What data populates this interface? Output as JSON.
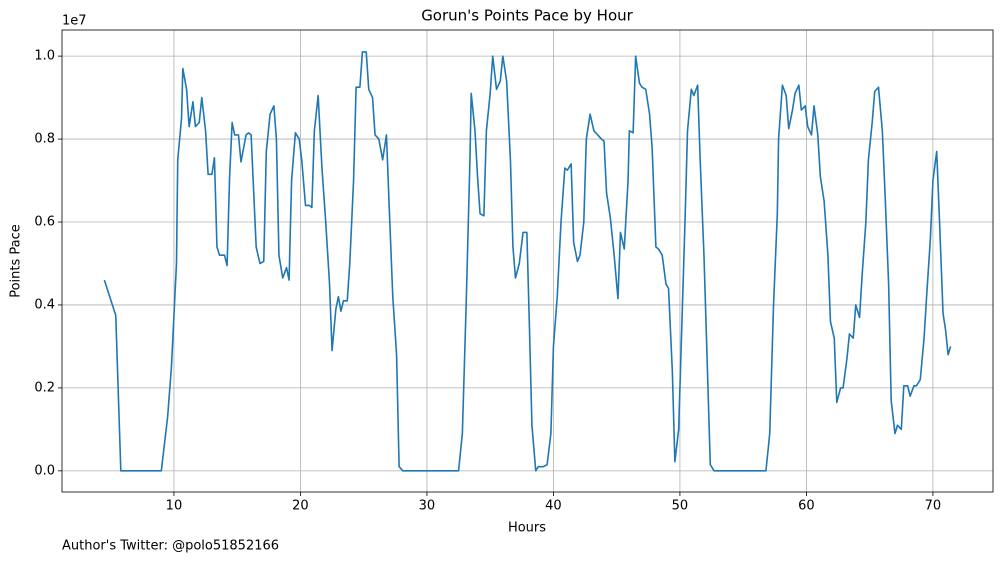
{
  "chart_data": {
    "type": "line",
    "title": "Gorun's Points Pace by Hour",
    "x_label": "Hours",
    "y_label": "Points Pace",
    "y_offset_label": "1e7",
    "footnote": "Author's Twitter: @polo51852166",
    "grid": true,
    "xlim": [
      1.15,
      74.75
    ],
    "ylim": [
      -0.051,
      1.063
    ],
    "xticks": [
      10,
      20,
      30,
      40,
      50,
      60,
      70
    ],
    "yticks": [
      {
        "value": 0,
        "label": "0.0"
      },
      0.2,
      0.4,
      0.6,
      0.8,
      {
        "value": 1,
        "label": "1.0"
      }
    ],
    "series": [
      {
        "name": "Points Pace",
        "color": "#1f77b4",
        "x": [
          4.5,
          5.4,
          5.8,
          9.0,
          9.5,
          9.8,
          10.2,
          10.3,
          10.6,
          10.7,
          11.0,
          11.2,
          11.5,
          11.7,
          12.0,
          12.2,
          12.5,
          12.7,
          13.0,
          13.2,
          13.4,
          13.6,
          14.0,
          14.2,
          14.4,
          14.6,
          14.8,
          15.1,
          15.3,
          15.7,
          15.9,
          16.1,
          16.5,
          16.8,
          17.1,
          17.3,
          17.6,
          17.9,
          18.1,
          18.3,
          18.6,
          18.9,
          19.1,
          19.3,
          19.6,
          19.9,
          20.1,
          20.4,
          20.7,
          20.9,
          21.1,
          21.4,
          21.7,
          22.0,
          22.3,
          22.5,
          22.8,
          23.0,
          23.2,
          23.4,
          23.7,
          23.9,
          24.2,
          24.4,
          24.7,
          24.9,
          25.2,
          25.4,
          25.7,
          25.9,
          26.2,
          26.5,
          26.8,
          27.0,
          27.3,
          27.6,
          27.8,
          28.1,
          32.5,
          32.8,
          33.1,
          33.4,
          33.5,
          33.8,
          34.0,
          34.2,
          34.5,
          34.7,
          35.0,
          35.2,
          35.5,
          35.8,
          36.0,
          36.3,
          36.6,
          36.8,
          37.0,
          37.3,
          37.6,
          37.9,
          38.1,
          38.3,
          38.6,
          38.8,
          39.2,
          39.5,
          39.8,
          40.0,
          40.3,
          40.6,
          40.9,
          41.1,
          41.4,
          41.6,
          41.9,
          42.1,
          42.4,
          42.6,
          42.9,
          43.2,
          43.5,
          43.8,
          44.0,
          44.2,
          44.5,
          44.8,
          45.1,
          45.3,
          45.6,
          45.9,
          46.0,
          46.3,
          46.5,
          46.8,
          47.0,
          47.3,
          47.6,
          47.8,
          48.1,
          48.3,
          48.6,
          48.9,
          49.1,
          49.4,
          49.6,
          49.9,
          50.1,
          50.4,
          50.6,
          50.9,
          51.1,
          51.4,
          51.6,
          51.9,
          52.1,
          52.4,
          52.7,
          56.8,
          57.1,
          57.4,
          57.7,
          57.8,
          58.1,
          58.4,
          58.6,
          58.9,
          59.1,
          59.4,
          59.6,
          59.9,
          60.1,
          60.4,
          60.6,
          60.9,
          61.1,
          61.4,
          61.7,
          61.9,
          62.2,
          62.4,
          62.7,
          62.9,
          63.2,
          63.4,
          63.7,
          63.9,
          64.2,
          64.4,
          64.7,
          64.9,
          65.2,
          65.4,
          65.7,
          66.0,
          66.2,
          66.5,
          66.7,
          67.0,
          67.2,
          67.5,
          67.7,
          68.0,
          68.2,
          68.5,
          68.7,
          69.0,
          69.3,
          69.5,
          69.8,
          70.0,
          70.3,
          70.5,
          70.8,
          71.0,
          71.2,
          71.4
        ],
        "values": [
          0.46,
          0.375,
          0.0,
          0.0,
          0.13,
          0.25,
          0.5,
          0.75,
          0.85,
          0.97,
          0.92,
          0.83,
          0.89,
          0.83,
          0.84,
          0.9,
          0.82,
          0.715,
          0.715,
          0.755,
          0.54,
          0.52,
          0.52,
          0.495,
          0.71,
          0.84,
          0.81,
          0.81,
          0.745,
          0.81,
          0.815,
          0.81,
          0.54,
          0.5,
          0.505,
          0.77,
          0.86,
          0.88,
          0.8,
          0.52,
          0.465,
          0.49,
          0.46,
          0.7,
          0.815,
          0.8,
          0.75,
          0.64,
          0.64,
          0.635,
          0.82,
          0.905,
          0.73,
          0.6,
          0.45,
          0.29,
          0.39,
          0.42,
          0.385,
          0.41,
          0.41,
          0.5,
          0.7,
          0.925,
          0.925,
          1.01,
          1.01,
          0.92,
          0.9,
          0.81,
          0.8,
          0.75,
          0.81,
          0.65,
          0.42,
          0.28,
          0.01,
          0.0,
          0.0,
          0.09,
          0.4,
          0.75,
          0.91,
          0.82,
          0.71,
          0.62,
          0.615,
          0.82,
          0.91,
          1.0,
          0.92,
          0.94,
          1.0,
          0.94,
          0.75,
          0.54,
          0.465,
          0.5,
          0.575,
          0.575,
          0.35,
          0.11,
          0.0,
          0.01,
          0.01,
          0.015,
          0.09,
          0.3,
          0.42,
          0.6,
          0.73,
          0.725,
          0.74,
          0.55,
          0.505,
          0.52,
          0.6,
          0.8,
          0.86,
          0.82,
          0.81,
          0.8,
          0.795,
          0.67,
          0.61,
          0.52,
          0.415,
          0.575,
          0.535,
          0.7,
          0.82,
          0.815,
          1.0,
          0.935,
          0.925,
          0.92,
          0.86,
          0.78,
          0.54,
          0.535,
          0.52,
          0.45,
          0.44,
          0.24,
          0.022,
          0.1,
          0.3,
          0.6,
          0.82,
          0.92,
          0.905,
          0.93,
          0.75,
          0.52,
          0.32,
          0.015,
          0.0,
          0.0,
          0.09,
          0.4,
          0.62,
          0.8,
          0.93,
          0.905,
          0.825,
          0.87,
          0.91,
          0.93,
          0.87,
          0.88,
          0.83,
          0.81,
          0.88,
          0.81,
          0.71,
          0.65,
          0.52,
          0.36,
          0.32,
          0.165,
          0.2,
          0.2,
          0.27,
          0.33,
          0.32,
          0.4,
          0.37,
          0.47,
          0.6,
          0.75,
          0.84,
          0.915,
          0.925,
          0.82,
          0.68,
          0.45,
          0.17,
          0.09,
          0.11,
          0.1,
          0.205,
          0.205,
          0.18,
          0.205,
          0.205,
          0.22,
          0.32,
          0.42,
          0.56,
          0.7,
          0.77,
          0.62,
          0.38,
          0.34,
          0.28,
          0.3
        ]
      }
    ]
  }
}
